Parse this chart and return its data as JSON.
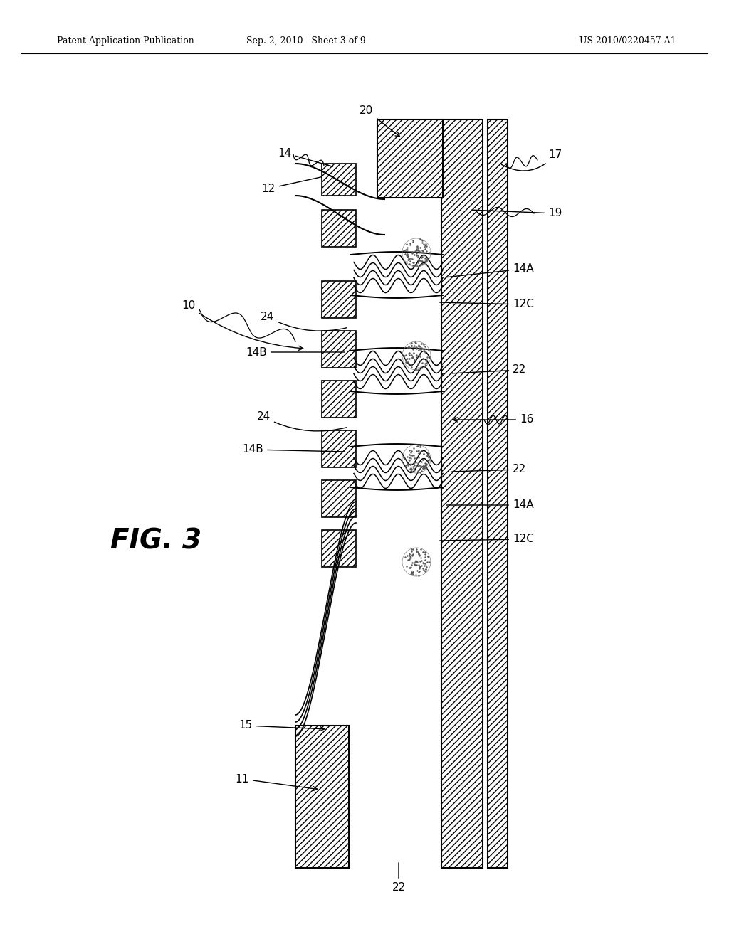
{
  "title_left": "Patent Application Publication",
  "title_mid": "Sep. 2, 2010   Sheet 3 of 9",
  "title_right": "US 2010/0220457 A1",
  "fig_label": "FIG. 3",
  "bg_color": "#ffffff",
  "line_color": "#000000"
}
